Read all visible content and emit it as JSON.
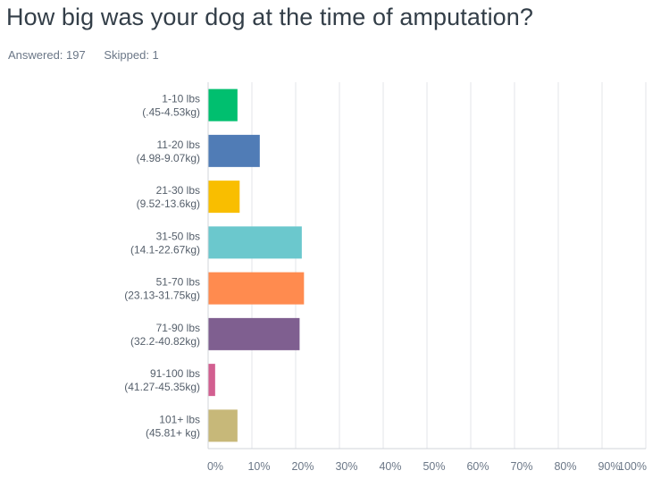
{
  "question": {
    "title": "How big was your dog at the time of amputation?",
    "answered": "Answered: 197",
    "skipped": "Skipped: 1"
  },
  "chart_data": {
    "type": "bar",
    "orientation": "horizontal",
    "categories": [
      [
        "1-10 lbs",
        "(.45-4.53kg)"
      ],
      [
        "11-20 lbs",
        "(4.98-9.07kg)"
      ],
      [
        "21-30 lbs",
        "(9.52-13.6kg)"
      ],
      [
        "31-50 lbs",
        "(14.1-22.67kg)"
      ],
      [
        "51-70 lbs",
        "(23.13-31.75kg)"
      ],
      [
        "71-90 lbs",
        "(32.2-40.82kg)"
      ],
      [
        "91-100 lbs",
        "(41.27-45.35kg)"
      ],
      [
        "101+ lbs",
        "(45.81+ kg)"
      ]
    ],
    "values": [
      6.6,
      11.7,
      7.1,
      21.3,
      21.8,
      20.8,
      1.5,
      6.6
    ],
    "colors": [
      "#00bf6f",
      "#507cb6",
      "#f9be00",
      "#6bc8cd",
      "#ff8b4f",
      "#7f5f90",
      "#d25f90",
      "#c7b879"
    ],
    "xlim": [
      0,
      100
    ],
    "xticks": [
      "0%",
      "10%",
      "20%",
      "30%",
      "40%",
      "50%",
      "60%",
      "70%",
      "80%",
      "90%",
      "100%"
    ],
    "grid": true
  }
}
